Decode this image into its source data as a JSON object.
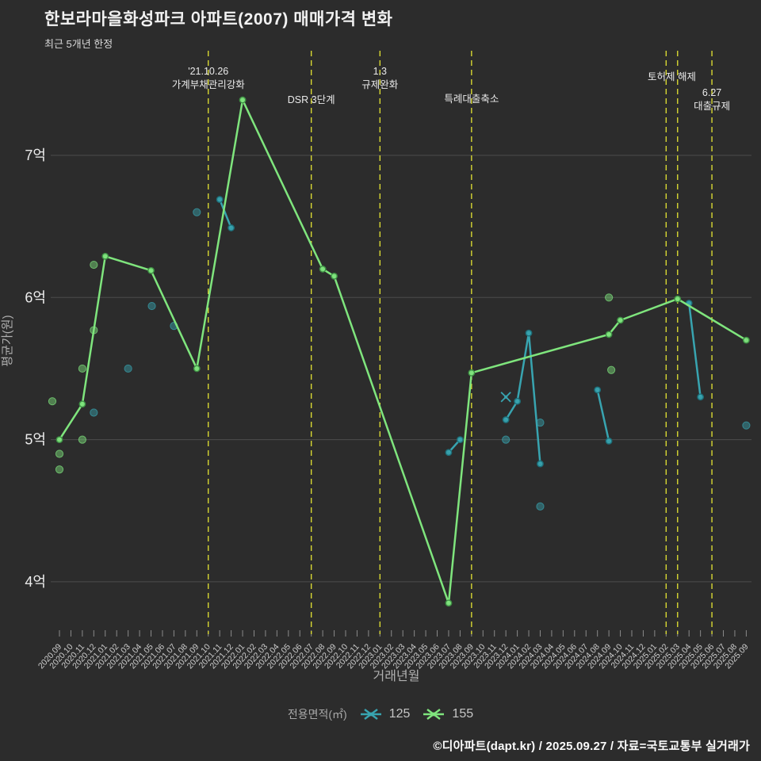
{
  "header": {
    "title": "한보라마을화성파크 아파트(2007) 매매가격 변화",
    "subtitle": "최근 5개년 한정"
  },
  "legend": {
    "label": "전용면적(㎡)"
  },
  "footer": {
    "text": "©디아파트(dapt.kr) / 2025.09.27 / 자료=국토교통부 실거래가"
  },
  "chart_data": {
    "type": "line",
    "title": "한보라마을화성파크 아파트(2007) 매매가격 변화",
    "subtitle": "최근 5개년 한정",
    "xlabel": "거래년월",
    "ylabel": "평균가(원)",
    "unit": "억원",
    "ylim": [
      3.6,
      7.6
    ],
    "grid": true,
    "legend_position": "bottom",
    "y_ticks": [
      {
        "value": 7,
        "label": "7억"
      },
      {
        "value": 6,
        "label": "6억"
      },
      {
        "value": 5,
        "label": "5억"
      },
      {
        "value": 4,
        "label": "4억"
      }
    ],
    "months": [
      "2020.09",
      "2020.10",
      "2020.11",
      "2020.12",
      "2021.01",
      "2021.02",
      "2021.03",
      "2021.04",
      "2021.05",
      "2021.06",
      "2021.07",
      "2021.08",
      "2021.09",
      "2021.10",
      "2021.11",
      "2021.12",
      "2022.01",
      "2022.02",
      "2022.03",
      "2022.04",
      "2022.05",
      "2022.06",
      "2022.07",
      "2022.08",
      "2022.09",
      "2022.10",
      "2022.11",
      "2022.12",
      "2023.01",
      "2023.02",
      "2023.03",
      "2023.04",
      "2023.05",
      "2023.06",
      "2023.07",
      "2023.08",
      "2023.09",
      "2023.10",
      "2023.11",
      "2023.12",
      "2024.01",
      "2024.02",
      "2024.03",
      "2024.04",
      "2024.05",
      "2024.06",
      "2024.07",
      "2024.08",
      "2024.09",
      "2024.10",
      "2024.11",
      "2024.12",
      "2025.01",
      "2025.02",
      "2025.03",
      "2025.04",
      "2025.05",
      "2025.06",
      "2025.07",
      "2025.08",
      "2025.09"
    ],
    "series": [
      {
        "name": "125",
        "color": "#38a4b0",
        "marker_stroke": "#1d6e79",
        "line_segments": [
          [
            {
              "m": "2021.11",
              "v": 6.69
            },
            {
              "m": "2021.12",
              "v": 6.49
            }
          ],
          [
            {
              "m": "2023.07",
              "v": 4.91
            },
            {
              "m": "2023.08",
              "v": 5.0
            }
          ],
          [
            {
              "m": "2023.12",
              "v": 5.14
            },
            {
              "m": "2024.01",
              "v": 5.27
            },
            {
              "m": "2024.02",
              "v": 5.75
            },
            {
              "m": "2024.03",
              "v": 4.83
            }
          ],
          [
            {
              "m": "2024.08",
              "v": 5.35
            },
            {
              "m": "2024.09",
              "v": 4.99
            }
          ],
          [
            {
              "m": "2025.04",
              "v": 5.96
            },
            {
              "m": "2025.05",
              "v": 5.3
            }
          ]
        ],
        "scatter": [
          {
            "m": "2020.12",
            "v": 5.19
          },
          {
            "m": "2021.03",
            "v": 5.5
          },
          {
            "m": "2021.05",
            "v": 5.94,
            "dx": 1
          },
          {
            "m": "2021.07",
            "v": 5.8
          },
          {
            "m": "2021.09",
            "v": 6.6
          },
          {
            "m": "2023.12",
            "v": 5.0
          },
          {
            "m": "2024.03",
            "v": 5.12
          },
          {
            "m": "2024.03",
            "v": 4.53
          },
          {
            "m": "2025.09",
            "v": 5.1
          }
        ],
        "cancelled": [
          {
            "m": "2023.12",
            "v": 5.3
          }
        ]
      },
      {
        "name": "155",
        "color": "#7fe57d",
        "marker_stroke": "#3f8f45",
        "line_segments": [
          [
            {
              "m": "2020.09",
              "v": 5.0
            },
            {
              "m": "2020.11",
              "v": 5.25
            },
            {
              "m": "2021.01",
              "v": 6.29
            },
            {
              "m": "2021.05",
              "v": 6.19
            },
            {
              "m": "2021.09",
              "v": 5.5
            },
            {
              "m": "2022.01",
              "v": 7.39
            },
            {
              "m": "2022.08",
              "v": 6.2
            },
            {
              "m": "2022.09",
              "v": 6.15
            },
            {
              "m": "2023.07",
              "v": 3.85
            },
            {
              "m": "2023.09",
              "v": 5.47
            },
            {
              "m": "2024.09",
              "v": 5.74
            },
            {
              "m": "2024.10",
              "v": 5.84
            },
            {
              "m": "2025.03",
              "v": 5.99
            },
            {
              "m": "2025.09",
              "v": 5.7
            }
          ]
        ],
        "scatter": [
          {
            "m": "2020.09",
            "v": 5.27,
            "dx": -9
          },
          {
            "m": "2020.09",
            "v": 4.9
          },
          {
            "m": "2020.09",
            "v": 4.79
          },
          {
            "m": "2020.11",
            "v": 5.5
          },
          {
            "m": "2020.11",
            "v": 5.0
          },
          {
            "m": "2020.12",
            "v": 5.77
          },
          {
            "m": "2020.12",
            "v": 6.23
          },
          {
            "m": "2024.09",
            "v": 6.0
          },
          {
            "m": "2024.09",
            "v": 5.49,
            "dx": 3
          }
        ],
        "cancelled": []
      }
    ],
    "events": [
      {
        "months": [
          "2021.10"
        ],
        "label": [
          "'21.10.26",
          "가계부채관리강화"
        ],
        "label_y": 94
      },
      {
        "months": [
          "2022.07"
        ],
        "label": [
          "DSR 3단계"
        ],
        "label_y": 130
      },
      {
        "months": [
          "2023.01"
        ],
        "label": [
          "1.3",
          "규제완화"
        ],
        "label_y": 94
      },
      {
        "months": [
          "2023.09"
        ],
        "label": [
          "특례대출축소"
        ],
        "label_y": 129
      },
      {
        "months": [
          "2025.02",
          "2025.03"
        ],
        "label": [
          "토허제 해제"
        ],
        "label_y": 101
      },
      {
        "months": [
          "2025.06"
        ],
        "label": [
          "6.27",
          "대출규제"
        ],
        "label_y": 121
      }
    ],
    "colors": {
      "background": "#2c2c2c",
      "grid": "#4d4d4d",
      "event_line": "#d8d832",
      "tick": "#8a8a8a",
      "tick_label": "#cfcfcf",
      "axis_title": "#b0b0b0",
      "y_tick_label": "#ececec",
      "event_label": "#e9e9e9"
    }
  }
}
